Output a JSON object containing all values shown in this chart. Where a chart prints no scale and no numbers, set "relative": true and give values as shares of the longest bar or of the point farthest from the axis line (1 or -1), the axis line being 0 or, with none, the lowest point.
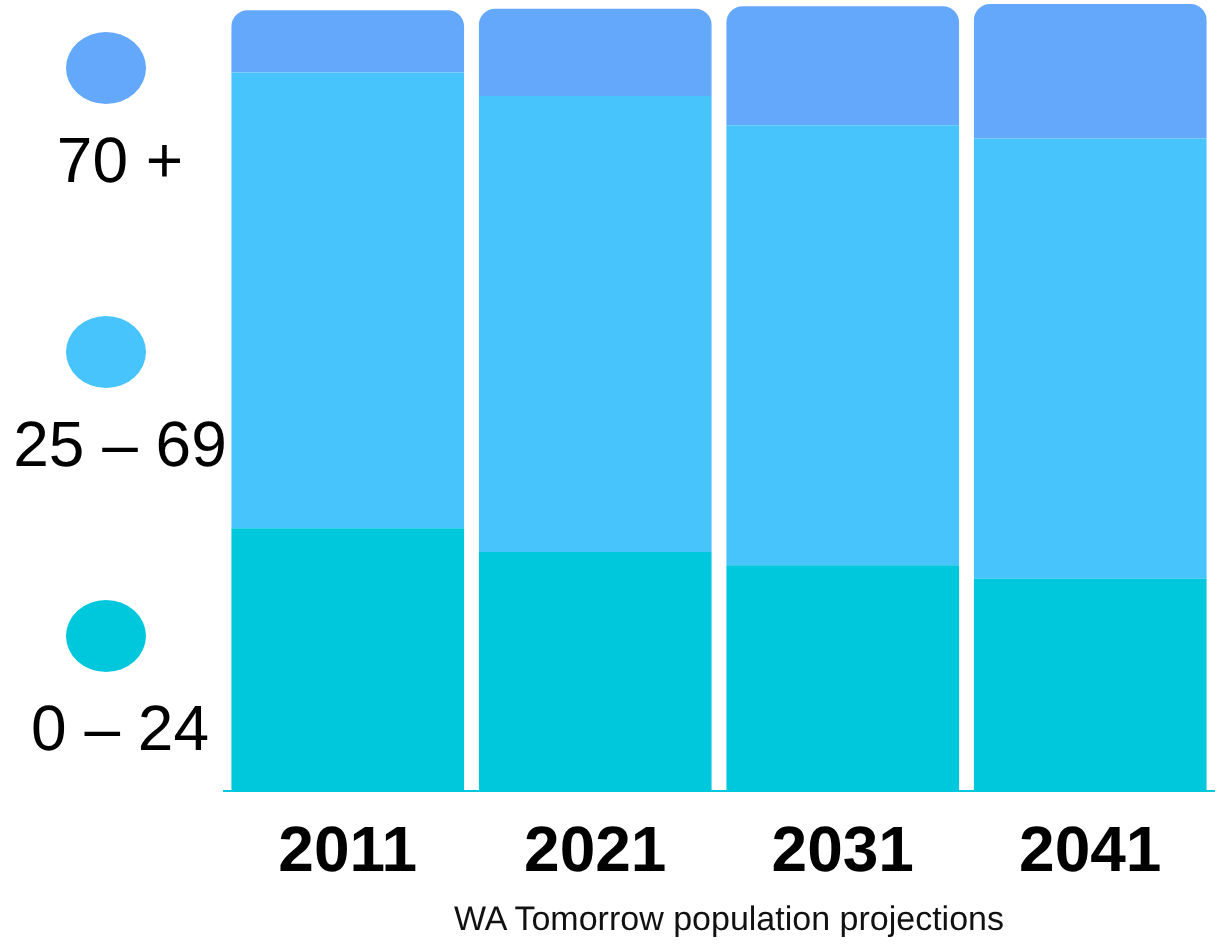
{
  "chart_data": {
    "type": "bar",
    "stacked": true,
    "relative": true,
    "legend": "left",
    "categories": [
      "2011",
      "2021",
      "2031",
      "2041"
    ],
    "series": [
      {
        "name": "0 – 24",
        "color": "#00c8dc",
        "values": [
          0.334,
          0.304,
          0.287,
          0.27
        ]
      },
      {
        "name": "25 – 69",
        "color": "#48c4fc",
        "values": [
          0.579,
          0.579,
          0.559,
          0.559
        ]
      },
      {
        "name": "70 +",
        "color": "#64a8fc",
        "values": [
          0.079,
          0.111,
          0.151,
          0.171
        ]
      }
    ],
    "annotations": [
      "WA Tomorrow population projections"
    ]
  }
}
